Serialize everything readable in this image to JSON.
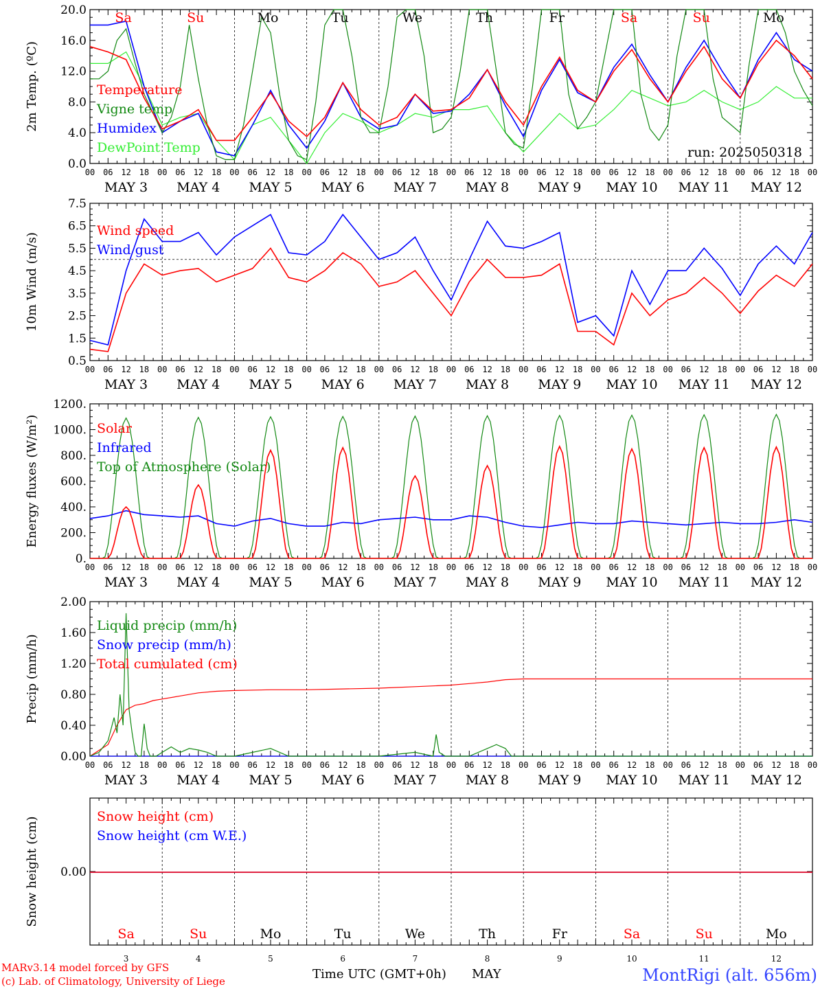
{
  "footer": {
    "credit_line1": "MARv3.14 model forced by GFS",
    "credit_line2": "(c) Lab. of Climatology, University of Liege",
    "axis_label": "Time UTC (GMT+0h)",
    "month": "MAY",
    "station": "MontRigi (alt. 656m)"
  },
  "colors": {
    "red": "#ff0000",
    "green": "#118811",
    "blue": "#0000ff",
    "light_green": "#33ee33",
    "black": "#000000",
    "station": "#3344ff"
  },
  "day_abbrev": [
    "Sa",
    "Su",
    "Mo",
    "Tu",
    "We",
    "Th",
    "Fr",
    "Sa",
    "Su",
    "Mo"
  ],
  "day_abbrev_colors": [
    "red",
    "red",
    "black",
    "black",
    "black",
    "black",
    "black",
    "red",
    "red",
    "black"
  ],
  "day_numbers": [
    "3",
    "4",
    "5",
    "6",
    "7",
    "8",
    "9",
    "10",
    "11",
    "12"
  ],
  "date_labels": [
    "MAY 3",
    "MAY 4",
    "MAY 5",
    "MAY 6",
    "MAY 7",
    "MAY 8",
    "MAY 9",
    "MAY 10",
    "MAY 11",
    "MAY 12"
  ],
  "hour_ticks": [
    "00",
    "06",
    "12",
    "18"
  ],
  "chart_data": [
    {
      "type": "line",
      "panel": "temperature",
      "ylabel": "2m Temp. (ºC)",
      "ylim": [
        0,
        20
      ],
      "yticks": [
        "0.0",
        "4.0",
        "8.0",
        "12.0",
        "16.0",
        "20.0"
      ],
      "run_label": "run: 2025050318",
      "x_unit": "hours since May 3 00 UTC",
      "series": [
        {
          "name": "Temperature",
          "color": "red",
          "x": [
            0,
            6,
            12,
            18,
            24,
            30,
            36,
            42,
            48,
            54,
            60,
            66,
            72,
            78,
            84,
            90,
            96,
            102,
            108,
            114,
            120,
            126,
            132,
            138,
            144,
            150,
            156,
            162,
            168,
            174,
            180,
            186,
            192,
            198,
            204,
            210,
            216,
            222,
            228,
            234,
            240
          ],
          "y": [
            15.2,
            14.5,
            13.5,
            8.5,
            4.5,
            5.5,
            7.0,
            3.0,
            3.0,
            6.0,
            9.2,
            5.5,
            3.5,
            6.0,
            10.5,
            7.0,
            5.0,
            6.0,
            9.0,
            6.8,
            7.0,
            8.5,
            12.2,
            8.0,
            5.0,
            10.0,
            13.8,
            9.5,
            8.0,
            12.0,
            14.8,
            11.0,
            8.0,
            12.0,
            15.2,
            11.0,
            8.5,
            13.0,
            16.0,
            14.0,
            11.0
          ]
        },
        {
          "name": "Vigne temp",
          "color": "green",
          "x": [
            0,
            3,
            6,
            9,
            12,
            15,
            18,
            21,
            24,
            27,
            30,
            33,
            36,
            39,
            42,
            45,
            48,
            51,
            54,
            57,
            60,
            63,
            66,
            69,
            72,
            75,
            78,
            81,
            84,
            87,
            90,
            93,
            96,
            99,
            102,
            105,
            108,
            111,
            114,
            117,
            120,
            123,
            126,
            129,
            132,
            135,
            138,
            141,
            144,
            147,
            150,
            153,
            156,
            159,
            162,
            165,
            168,
            171,
            174,
            177,
            180,
            183,
            186,
            189,
            192,
            195,
            198,
            201,
            204,
            207,
            210,
            213,
            216,
            219,
            222,
            225,
            228,
            231,
            234,
            237,
            240
          ],
          "y": [
            11.0,
            11.0,
            12.0,
            16.0,
            17.5,
            13.0,
            9.0,
            6.5,
            4.0,
            6.0,
            10.0,
            18.0,
            11.0,
            5.0,
            1.0,
            0.5,
            0.5,
            5.0,
            12.0,
            19.0,
            17.0,
            9.0,
            3.0,
            1.0,
            0.5,
            8.0,
            18.0,
            20.0,
            20.0,
            14.0,
            6.0,
            4.0,
            4.0,
            10.0,
            19.0,
            20.0,
            20.0,
            14.0,
            4.0,
            4.5,
            6.0,
            12.0,
            20.0,
            20.0,
            20.0,
            12.0,
            4.0,
            2.5,
            2.0,
            10.0,
            20.0,
            20.0,
            20.0,
            9.0,
            4.5,
            6.0,
            8.0,
            14.0,
            20.0,
            20.0,
            20.0,
            9.0,
            4.5,
            3.0,
            5.0,
            14.0,
            20.0,
            20.0,
            20.0,
            11.0,
            6.0,
            5.0,
            4.0,
            13.0,
            20.0,
            20.0,
            20.0,
            17.0,
            12.0,
            9.5,
            7.5
          ]
        },
        {
          "name": "Humidex",
          "color": "blue",
          "x": [
            0,
            6,
            12,
            18,
            24,
            30,
            36,
            42,
            48,
            54,
            60,
            66,
            72,
            78,
            84,
            90,
            96,
            102,
            108,
            114,
            120,
            126,
            132,
            138,
            144,
            150,
            156,
            162,
            168,
            174,
            180,
            186,
            192,
            198,
            204,
            210,
            216,
            222,
            228,
            234,
            240
          ],
          "y": [
            18.0,
            18.0,
            18.5,
            10.0,
            4.0,
            5.5,
            6.5,
            1.5,
            1.0,
            5.0,
            9.5,
            5.0,
            2.0,
            5.5,
            10.5,
            6.0,
            4.5,
            5.0,
            9.0,
            6.5,
            6.8,
            9.0,
            12.2,
            7.5,
            3.5,
            9.5,
            13.5,
            9.2,
            8.0,
            12.5,
            15.5,
            11.5,
            8.0,
            12.5,
            16.0,
            12.0,
            8.5,
            13.5,
            17.0,
            13.5,
            12.0
          ]
        },
        {
          "name": "DewPoint Temp",
          "color": "light_green",
          "x": [
            0,
            6,
            12,
            18,
            24,
            30,
            36,
            42,
            48,
            54,
            60,
            66,
            72,
            78,
            84,
            90,
            96,
            102,
            108,
            114,
            120,
            126,
            132,
            138,
            144,
            150,
            156,
            162,
            168,
            174,
            180,
            186,
            192,
            198,
            204,
            210,
            216,
            222,
            228,
            234,
            240
          ],
          "y": [
            13.0,
            13.0,
            14.5,
            10.0,
            5.0,
            6.0,
            6.5,
            3.0,
            0.5,
            5.0,
            6.0,
            3.0,
            0.0,
            4.0,
            6.5,
            5.5,
            4.0,
            5.0,
            6.5,
            6.0,
            7.0,
            7.0,
            7.5,
            4.0,
            1.5,
            4.0,
            6.5,
            4.5,
            5.0,
            7.0,
            9.5,
            8.5,
            7.5,
            8.0,
            9.5,
            8.0,
            7.0,
            8.0,
            10.0,
            8.5,
            8.5
          ]
        }
      ]
    },
    {
      "type": "line",
      "panel": "wind",
      "ylabel": "10m Wind (m/s)",
      "ylim": [
        0.5,
        7.5
      ],
      "yticks": [
        "0.5",
        "1.5",
        "2.5",
        "3.5",
        "4.5",
        "5.5",
        "6.5",
        "7.5"
      ],
      "reference_line": 5.0,
      "series": [
        {
          "name": "Wind speed",
          "color": "red",
          "x": [
            0,
            6,
            12,
            18,
            24,
            30,
            36,
            42,
            48,
            54,
            60,
            66,
            72,
            78,
            84,
            90,
            96,
            102,
            108,
            114,
            120,
            126,
            132,
            138,
            144,
            150,
            156,
            162,
            168,
            174,
            180,
            186,
            192,
            198,
            204,
            210,
            216,
            222,
            228,
            234,
            240
          ],
          "y": [
            1.0,
            0.9,
            3.5,
            4.8,
            4.3,
            4.5,
            4.6,
            4.0,
            4.3,
            4.6,
            5.5,
            4.2,
            4.0,
            4.5,
            5.3,
            4.8,
            3.8,
            4.0,
            4.5,
            3.5,
            2.5,
            4.0,
            5.0,
            4.2,
            4.2,
            4.3,
            4.8,
            1.8,
            1.8,
            1.2,
            3.5,
            2.5,
            3.2,
            3.5,
            4.2,
            3.5,
            2.6,
            3.6,
            4.3,
            3.8,
            4.8
          ]
        },
        {
          "name": "Wind gust",
          "color": "blue",
          "x": [
            0,
            6,
            12,
            18,
            24,
            30,
            36,
            42,
            48,
            54,
            60,
            66,
            72,
            78,
            84,
            90,
            96,
            102,
            108,
            114,
            120,
            126,
            132,
            138,
            144,
            150,
            156,
            162,
            168,
            174,
            180,
            186,
            192,
            198,
            204,
            210,
            216,
            222,
            228,
            234,
            240
          ],
          "y": [
            1.4,
            1.2,
            4.5,
            6.8,
            5.8,
            5.8,
            6.2,
            5.2,
            6.0,
            6.5,
            7.0,
            5.3,
            5.2,
            5.8,
            7.0,
            6.0,
            5.0,
            5.3,
            6.0,
            4.5,
            3.2,
            5.0,
            6.7,
            5.6,
            5.5,
            5.8,
            6.2,
            2.2,
            2.5,
            1.6,
            4.5,
            3.0,
            4.5,
            4.5,
            5.5,
            4.6,
            3.4,
            4.8,
            5.6,
            4.8,
            6.2
          ]
        }
      ]
    },
    {
      "type": "line",
      "panel": "energy",
      "ylabel": "Energy fluxes (W/m²)",
      "ylim": [
        0,
        1200
      ],
      "yticks": [
        "0.",
        "200.",
        "400.",
        "600.",
        "800.",
        "1000.",
        "1200."
      ],
      "series": [
        {
          "name": "Solar",
          "color": "red",
          "peaks_at_12h": [
            400,
            570,
            840,
            860,
            640,
            720,
            870,
            850,
            860,
            865
          ]
        },
        {
          "name": "Infrared",
          "color": "blue",
          "x": [
            0,
            6,
            12,
            18,
            24,
            30,
            36,
            42,
            48,
            54,
            60,
            66,
            72,
            78,
            84,
            90,
            96,
            102,
            108,
            114,
            120,
            126,
            132,
            138,
            144,
            150,
            156,
            162,
            168,
            174,
            180,
            186,
            192,
            198,
            204,
            210,
            216,
            222,
            228,
            234,
            240
          ],
          "y": [
            310,
            330,
            370,
            340,
            330,
            320,
            330,
            270,
            250,
            290,
            310,
            270,
            250,
            250,
            280,
            270,
            300,
            310,
            320,
            300,
            300,
            330,
            320,
            280,
            250,
            240,
            260,
            280,
            270,
            270,
            290,
            280,
            270,
            260,
            270,
            280,
            270,
            270,
            280,
            300,
            280
          ]
        },
        {
          "name": "Top of Atmosphere (Solar)",
          "color": "green",
          "peaks_at_12h": [
            1090,
            1095,
            1100,
            1102,
            1105,
            1108,
            1110,
            1112,
            1115,
            1118
          ]
        }
      ]
    },
    {
      "type": "line",
      "panel": "precip",
      "ylabel": "Precip (mm/h)",
      "ylim": [
        0,
        2.0
      ],
      "yticks": [
        "0.00",
        "0.40",
        "0.80",
        "1.20",
        "1.60",
        "2.00"
      ],
      "series": [
        {
          "name": "Liquid precip (mm/h)",
          "color": "green",
          "x": [
            0,
            3,
            6,
            8,
            9,
            10,
            11,
            12,
            13,
            14,
            15,
            16,
            17,
            18,
            19,
            20,
            22,
            24,
            27,
            30,
            33,
            36,
            39,
            42,
            48,
            60,
            66,
            72,
            96,
            108,
            114,
            115,
            116,
            118,
            120,
            126,
            132,
            135,
            138,
            140,
            144,
            240
          ],
          "y": [
            0,
            0.05,
            0.2,
            0.5,
            0.3,
            0.8,
            0.4,
            1.85,
            0.6,
            0.3,
            0.05,
            0,
            0,
            0.42,
            0.1,
            0,
            0,
            0.05,
            0.12,
            0.05,
            0.1,
            0.08,
            0.05,
            0,
            0,
            0.1,
            0,
            0,
            0,
            0.05,
            0,
            0.28,
            0.05,
            0,
            0,
            0,
            0.1,
            0.15,
            0.1,
            0,
            0,
            0
          ]
        },
        {
          "name": "Snow precip (mm/h)",
          "color": "blue",
          "x": [
            0,
            240
          ],
          "y": [
            0,
            0
          ]
        },
        {
          "name": "Total cumulated (cm)",
          "color": "red",
          "x": [
            0,
            6,
            9,
            12,
            15,
            18,
            21,
            24,
            30,
            36,
            42,
            48,
            60,
            72,
            84,
            96,
            108,
            120,
            126,
            132,
            138,
            144,
            240
          ],
          "y": [
            0,
            0.15,
            0.4,
            0.6,
            0.66,
            0.68,
            0.72,
            0.74,
            0.78,
            0.82,
            0.84,
            0.85,
            0.86,
            0.86,
            0.87,
            0.88,
            0.9,
            0.92,
            0.94,
            0.96,
            0.99,
            1.0,
            1.0
          ]
        }
      ]
    },
    {
      "type": "line",
      "panel": "snow",
      "ylabel": "Snow height (cm)",
      "yticks": [
        "0.00"
      ],
      "series": [
        {
          "name": "Snow height (cm)",
          "color": "red",
          "x": [
            0,
            240
          ],
          "y": [
            0,
            0
          ]
        },
        {
          "name": "Snow height (cm W.E.)",
          "color": "blue",
          "x": [
            0,
            240
          ],
          "y": [
            0,
            0
          ]
        }
      ]
    }
  ]
}
